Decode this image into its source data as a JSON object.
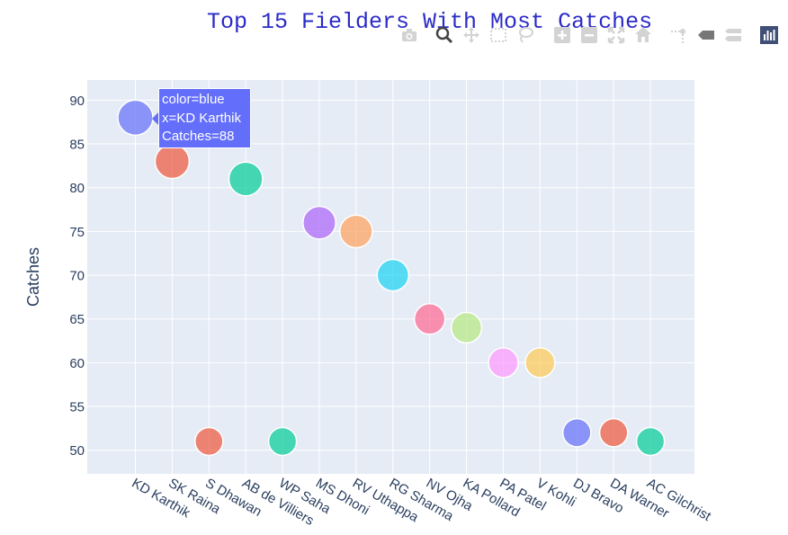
{
  "chart_data": {
    "type": "scatter",
    "title": "Top 15 Fielders With Most Catches",
    "xlabel": "",
    "ylabel": "Catches",
    "ylim": [
      47.3,
      92.3
    ],
    "yticks": [
      50,
      55,
      60,
      65,
      70,
      75,
      80,
      85,
      90
    ],
    "grid": true,
    "categories": [
      "KD Karthik",
      "SK Raina",
      "S Dhawan",
      "AB de Villiers",
      "WP Saha",
      "MS Dhoni",
      "RV Uthappa",
      "RG Sharma",
      "NV Ojha",
      "KA Pollard",
      "PA Patel",
      "V Kohli",
      "DJ Bravo",
      "DA Warner",
      "AC Gilchrist"
    ],
    "values": [
      88,
      83,
      51,
      81,
      51,
      76,
      75,
      70,
      65,
      64,
      60,
      60,
      52,
      52,
      51
    ],
    "colors": [
      "#636efa",
      "#ef553b",
      "#ef553b",
      "#00cc96",
      "#00cc96",
      "#ab63fa",
      "#ffa15a",
      "#19d3f3",
      "#ff6692",
      "#b6e880",
      "#ff97ff",
      "#fecb52",
      "#636efa",
      "#ef553b",
      "#00cc96"
    ],
    "tooltip": {
      "lines": [
        "color=blue",
        "x=KD Karthik",
        "Catches=88"
      ]
    }
  },
  "modebar": {
    "icons": [
      "camera-icon",
      "zoom-icon",
      "pan-icon",
      "box-select-icon",
      "lasso-select-icon",
      "zoom-in-icon",
      "zoom-out-icon",
      "autoscale-icon",
      "reset-axes-icon",
      "spike-lines-icon",
      "hover-closest-icon",
      "hover-compare-icon",
      "plotly-logo-icon"
    ]
  }
}
